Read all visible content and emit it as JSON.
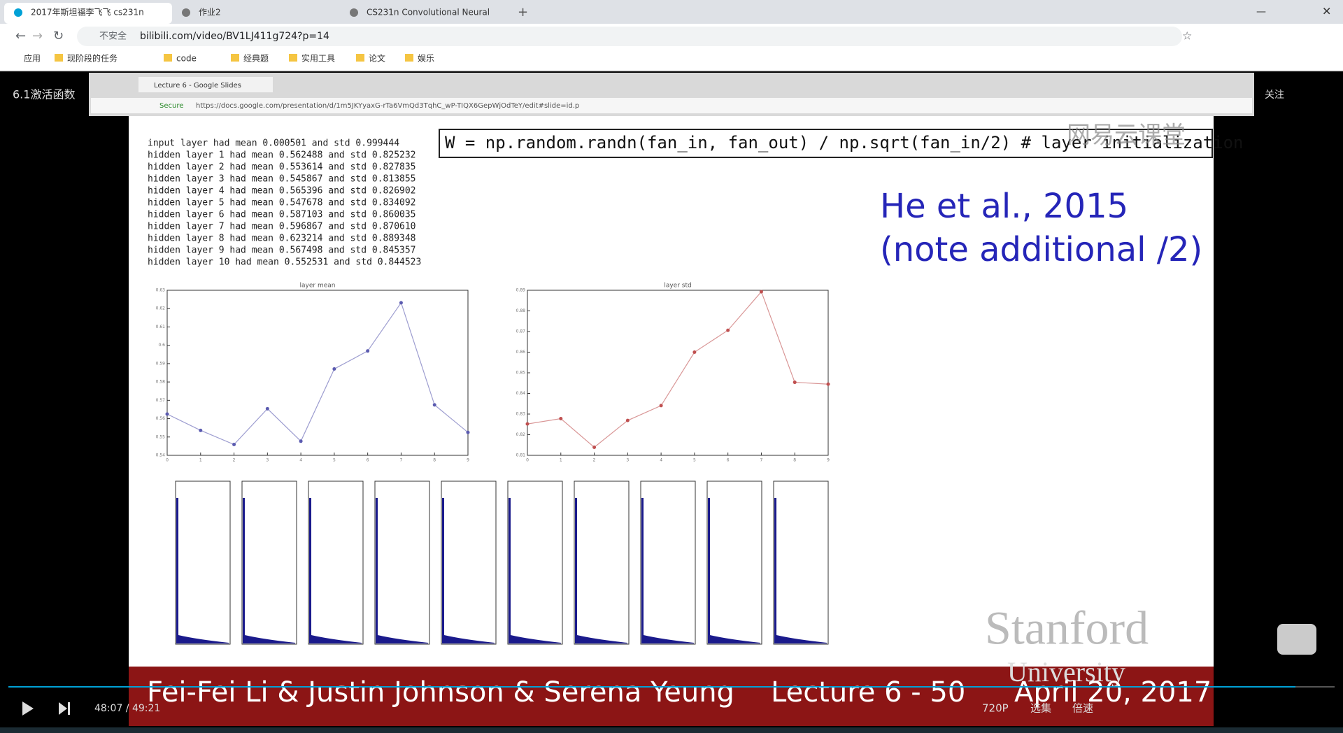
{
  "browser": {
    "tabs": [
      "2017年斯坦福李飞飞 cs231n",
      "作业2",
      "CS231n Convolutional Neural"
    ],
    "security": "不安全",
    "url": "bilibili.com/video/BV1LJ411g724?p=14",
    "bookmarks": [
      "应用",
      "现阶段的任务",
      "code",
      "经典题",
      "实用工具",
      "论文",
      "娱乐"
    ]
  },
  "video": {
    "title": "6.1激活函数",
    "follow": "关注",
    "watermark": "网易云课堂",
    "inner_browser": {
      "tab": "Lecture 6 - Google Slides",
      "secure": "Secure",
      "url": "https://docs.google.com/presentation/d/1m5JKYyaxG-rTa6VmQd3TqhC_wP-TIQX6GepWjOdTeY/edit#slide=id.p"
    },
    "slide": {
      "code_output": [
        "input layer had mean 0.000501 and std 0.999444",
        "hidden layer 1 had mean 0.562488 and std 0.825232",
        "hidden layer 2 had mean 0.553614 and std 0.827835",
        "hidden layer 3 had mean 0.545867 and std 0.813855",
        "hidden layer 4 had mean 0.565396 and std 0.826902",
        "hidden layer 5 had mean 0.547678 and std 0.834092",
        "hidden layer 6 had mean 0.587103 and std 0.860035",
        "hidden layer 7 had mean 0.596867 and std 0.870610",
        "hidden layer 8 had mean 0.623214 and std 0.889348",
        "hidden layer 9 had mean 0.567498 and std 0.845357",
        "hidden layer 10 had mean 0.552531 and std 0.844523"
      ],
      "code": "W = np.random.randn(fan_in, fan_out) / np.sqrt(fan_in/2) # layer initialization",
      "headline": [
        "He et al., 2015",
        "(note additional /2)"
      ],
      "university": [
        "Stanford",
        "University"
      ],
      "footer": [
        "Fei-Fei Li & Justin Johnson & Serena Yeung",
        "Lecture 6 - 50",
        "April 20, 2017"
      ]
    },
    "controls": {
      "time": "48:07 / 49:21",
      "quality": "720P",
      "episodes": "选集",
      "speed": "倍速"
    }
  },
  "chart_data": [
    {
      "type": "line",
      "title": "layer mean",
      "x": [
        0,
        1,
        2,
        3,
        4,
        5,
        6,
        7,
        8,
        9
      ],
      "values": [
        0.5625,
        0.5536,
        0.5459,
        0.5654,
        0.5477,
        0.5871,
        0.5969,
        0.6232,
        0.5675,
        0.5525
      ],
      "color": "#5b5bb0",
      "xlim": [
        0,
        9
      ],
      "ylim": [
        0.54,
        0.63
      ],
      "xticks": [
        0,
        1,
        2,
        3,
        4,
        5,
        6,
        7,
        8,
        9
      ],
      "yticks": [
        0.54,
        0.55,
        0.56,
        0.57,
        0.58,
        0.59,
        0.6,
        0.61,
        0.62,
        0.63
      ]
    },
    {
      "type": "line",
      "title": "layer std",
      "x": [
        0,
        1,
        2,
        3,
        4,
        5,
        6,
        7,
        8,
        9
      ],
      "values": [
        0.8252,
        0.8278,
        0.8139,
        0.8269,
        0.8341,
        0.86,
        0.8706,
        0.8893,
        0.8454,
        0.8445
      ],
      "color": "#c05050",
      "xlim": [
        0,
        9
      ],
      "ylim": [
        0.81,
        0.89
      ],
      "xticks": [
        0,
        1,
        2,
        3,
        4,
        5,
        6,
        7,
        8,
        9
      ],
      "yticks": [
        0.81,
        0.82,
        0.83,
        0.84,
        0.85,
        0.86,
        0.87,
        0.88,
        0.89
      ]
    }
  ]
}
